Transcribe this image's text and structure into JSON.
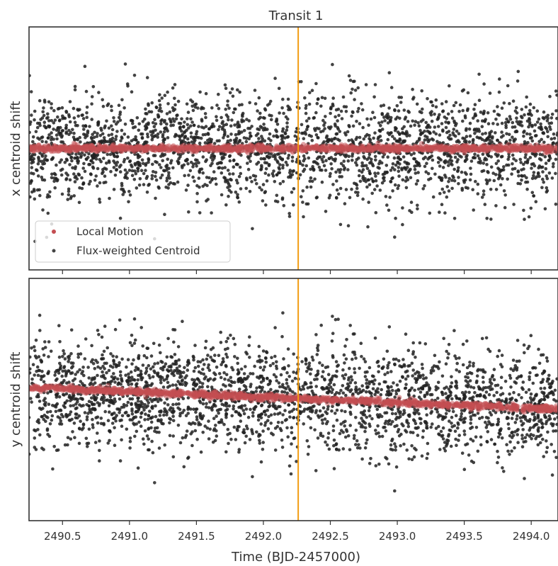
{
  "chart_data": {
    "type": "scatter",
    "title": "Transit 1",
    "xlabel": "Time (BJD-2457000)",
    "xlim": [
      2490.25,
      2494.2
    ],
    "x_ticks": [
      "2490.5",
      "2491.0",
      "2491.5",
      "2492.0",
      "2492.5",
      "2493.0",
      "2493.5",
      "2494.0"
    ],
    "x_tick_values": [
      2490.5,
      2491.0,
      2491.5,
      2492.0,
      2492.5,
      2493.0,
      2493.5,
      2494.0
    ],
    "transit_time": 2492.26,
    "transit_line_color": "#f39c12",
    "shared_x": true,
    "legend": {
      "placement": "lower-left of top panel",
      "entries": [
        {
          "label": "Local Motion",
          "color": "#c44e52"
        },
        {
          "label": "Flux-weighted Centroid",
          "color": "#222222"
        }
      ]
    },
    "panels": [
      {
        "ylabel": "x centroid shift",
        "ylim": [
          -1.0,
          1.0
        ],
        "y_ticks_labeled": false,
        "series": [
          {
            "name": "Local Motion",
            "color": "#c44e52",
            "type": "band",
            "x": [
              2490.25,
              2494.2
            ],
            "y": [
              0.0,
              0.0
            ]
          },
          {
            "name": "Flux-weighted Centroid",
            "color": "#222222",
            "type": "scatter",
            "x_range": [
              2490.25,
              2494.2
            ],
            "center": 0.0,
            "spread_sd": 0.22,
            "approx_points": 2600
          }
        ]
      },
      {
        "ylabel": "y centroid shift",
        "ylim": [
          -1.0,
          1.0
        ],
        "y_ticks_labeled": false,
        "series": [
          {
            "name": "Local Motion",
            "color": "#c44e52",
            "type": "band",
            "x": [
              2490.25,
              2494.2
            ],
            "y": [
              0.1,
              -0.08
            ]
          },
          {
            "name": "Flux-weighted Centroid",
            "color": "#222222",
            "type": "scatter",
            "x_range": [
              2490.25,
              2494.2
            ],
            "center_start": 0.1,
            "center_end": -0.08,
            "spread_sd": 0.22,
            "approx_points": 2600
          }
        ]
      }
    ]
  }
}
